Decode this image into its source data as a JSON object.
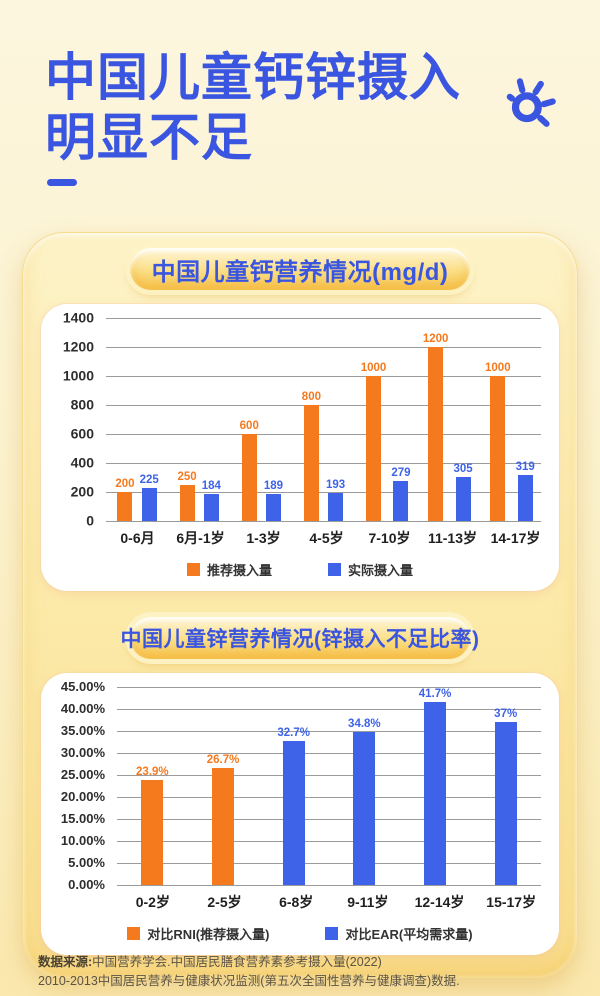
{
  "page": {
    "title_line1": "中国儿童钙锌摄入",
    "title_line2": "明显不足",
    "title_color": "#3A55DF",
    "accent_orange": "#F5791D",
    "accent_blue": "#3E63E8",
    "background_cream": "#FCF6DF",
    "card_gold": "#FAE193"
  },
  "source": {
    "label": "数据来源:",
    "line1": "中国营养学会.中国居民膳食营养素参考摄入量(2022)",
    "line2": "2010-2013中国居民营养与健康状况监测(第五次全国性营养与健康调查)数据."
  },
  "chart_data": [
    {
      "type": "bar",
      "title": "中国儿童钙营养情况(mg/d)",
      "categories": [
        "0-6月",
        "6月-1岁",
        "1-3岁",
        "4-5岁",
        "7-10岁",
        "11-13岁",
        "14-17岁"
      ],
      "series": [
        {
          "name": "推荐摄入量",
          "color": "#F5791D",
          "values": [
            200,
            250,
            600,
            800,
            1000,
            1200,
            1000
          ],
          "labels": [
            "200",
            "250",
            "600",
            "800",
            "1000",
            "1200",
            "1000"
          ]
        },
        {
          "name": "实际摄入量",
          "color": "#3E63E8",
          "values": [
            225,
            184,
            189,
            193,
            279,
            305,
            319
          ],
          "labels": [
            "225",
            "184",
            "189",
            "193",
            "279",
            "305",
            "319"
          ]
        }
      ],
      "ylim": [
        0,
        1400
      ],
      "ytick_step": 200,
      "ytick_labels": [
        "1400",
        "1200",
        "1000",
        "800",
        "600",
        "400",
        "200",
        "0"
      ],
      "grid": true,
      "legend_position": "bottom"
    },
    {
      "type": "bar",
      "title": "中国儿童锌营养情况(锌摄入不足比率)",
      "categories": [
        "0-2岁",
        "2-5岁",
        "6-8岁",
        "9-11岁",
        "12-14岁",
        "15-17岁"
      ],
      "series": [
        {
          "name": "对比RNI(推荐摄入量)",
          "color": "#F5791D",
          "values": [
            23.9,
            26.7,
            null,
            null,
            null,
            null
          ],
          "labels": [
            "23.9%",
            "26.7%",
            "",
            "",
            "",
            ""
          ]
        },
        {
          "name": "对比EAR(平均需求量)",
          "color": "#3E63E8",
          "values": [
            null,
            null,
            32.7,
            34.8,
            41.7,
            37
          ],
          "labels": [
            "",
            "",
            "32.7%",
            "34.8%",
            "41.7%",
            "37%"
          ]
        }
      ],
      "ylim": [
        0,
        45
      ],
      "ytick_step": 5,
      "ytick_labels": [
        "45.00%",
        "40.00%",
        "35.00%",
        "30.00%",
        "25.00%",
        "20.00%",
        "15.00%",
        "10.00%",
        "5.00%",
        "0.00%"
      ],
      "grid": true,
      "legend_position": "bottom"
    }
  ]
}
